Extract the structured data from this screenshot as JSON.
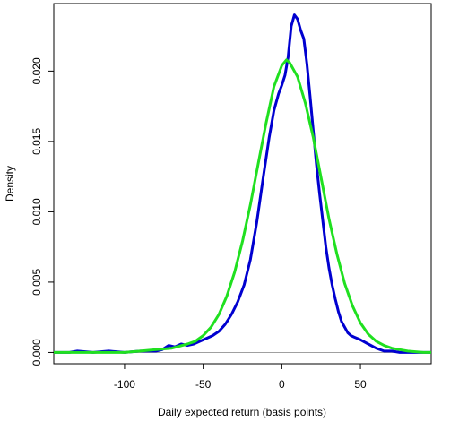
{
  "chart_data": {
    "type": "line",
    "title": "",
    "xlabel": "Daily expected return (basis points)",
    "ylabel": "Density",
    "xlim": [
      -145,
      95
    ],
    "ylim": [
      -0.0008,
      0.0248
    ],
    "x_ticks": [
      -100,
      -50,
      0,
      50
    ],
    "x_tick_labels": [
      "-100",
      "-50",
      "0",
      "50"
    ],
    "y_ticks": [
      0.0,
      0.005,
      0.01,
      0.015,
      0.02
    ],
    "y_tick_labels": [
      "0.000",
      "0.005",
      "0.010",
      "0.015",
      "0.020"
    ],
    "grid": false,
    "legend": "none",
    "zero_line_color": "#a0a0a0",
    "series": [
      {
        "color": "#0000d0",
        "x": [
          -145,
          -135,
          -130,
          -120,
          -110,
          -100,
          -90,
          -80,
          -76,
          -72,
          -68,
          -64,
          -60,
          -56,
          -52,
          -48,
          -44,
          -40,
          -36,
          -32,
          -28,
          -24,
          -20,
          -16,
          -12,
          -8,
          -5,
          -2,
          0,
          2,
          4,
          6,
          8,
          10,
          12,
          14,
          16,
          18,
          20,
          22,
          24,
          26,
          28,
          30,
          32,
          34,
          36,
          38,
          40,
          42,
          44,
          46,
          48,
          50,
          55,
          60,
          65,
          70,
          75,
          80,
          85,
          90,
          95
        ],
        "y": [
          0.0,
          0.0,
          0.0001,
          0.0,
          0.0001,
          0.0,
          0.0001,
          0.0001,
          0.0002,
          0.0005,
          0.0004,
          0.0006,
          0.0005,
          0.0006,
          0.0008,
          0.001,
          0.0012,
          0.0015,
          0.002,
          0.0027,
          0.0036,
          0.0048,
          0.0066,
          0.0092,
          0.0123,
          0.0153,
          0.0172,
          0.0184,
          0.019,
          0.0197,
          0.021,
          0.0232,
          0.024,
          0.0237,
          0.0229,
          0.0223,
          0.0205,
          0.0182,
          0.0158,
          0.0134,
          0.0113,
          0.0094,
          0.0075,
          0.006,
          0.0048,
          0.0038,
          0.0029,
          0.0022,
          0.0018,
          0.0014,
          0.0012,
          0.0011,
          0.001,
          0.0009,
          0.0006,
          0.0003,
          0.0001,
          0.0001,
          0.0,
          0.0,
          0.0,
          0.0,
          0.0
        ]
      },
      {
        "color": "#20e020",
        "x": [
          -145,
          -130,
          -120,
          -110,
          -100,
          -90,
          -80,
          -70,
          -60,
          -55,
          -50,
          -45,
          -40,
          -35,
          -30,
          -25,
          -20,
          -15,
          -10,
          -5,
          0,
          3,
          5,
          10,
          15,
          20,
          25,
          30,
          35,
          40,
          45,
          50,
          55,
          60,
          65,
          70,
          75,
          80,
          90,
          95
        ],
        "y": [
          0.0,
          0.0,
          0.0,
          0.0,
          0.0,
          0.0001,
          0.0002,
          0.0003,
          0.0006,
          0.0008,
          0.0012,
          0.0018,
          0.0027,
          0.004,
          0.0057,
          0.0079,
          0.0105,
          0.0134,
          0.0163,
          0.0189,
          0.0204,
          0.0208,
          0.0206,
          0.0196,
          0.0177,
          0.0153,
          0.0124,
          0.0095,
          0.007,
          0.0049,
          0.0033,
          0.0021,
          0.0013,
          0.0008,
          0.0005,
          0.0003,
          0.0002,
          0.0001,
          0.0,
          0.0
        ]
      }
    ]
  }
}
